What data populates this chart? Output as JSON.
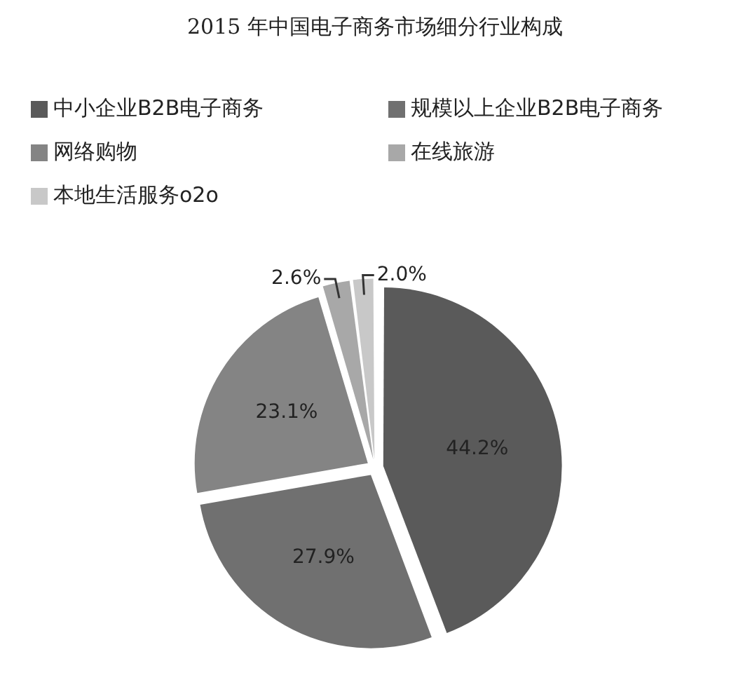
{
  "chart_data": {
    "type": "pie",
    "title": "2015 年中国电子商务市场细分行业构成",
    "categories": [
      "中小企业B2B电子商务",
      "规模以上企业B2B电子商务",
      "网络购物",
      "在线旅游",
      "本地生活服务o2o"
    ],
    "values": [
      44.2,
      27.9,
      23.1,
      2.6,
      2.0
    ],
    "colors": [
      "#5a5a5a",
      "#707070",
      "#848484",
      "#a8a8a8",
      "#c8c8c8"
    ],
    "value_labels": [
      "44.2%",
      "27.9%",
      "23.1%",
      "2.6%",
      "2.0%"
    ],
    "legend": "top"
  }
}
